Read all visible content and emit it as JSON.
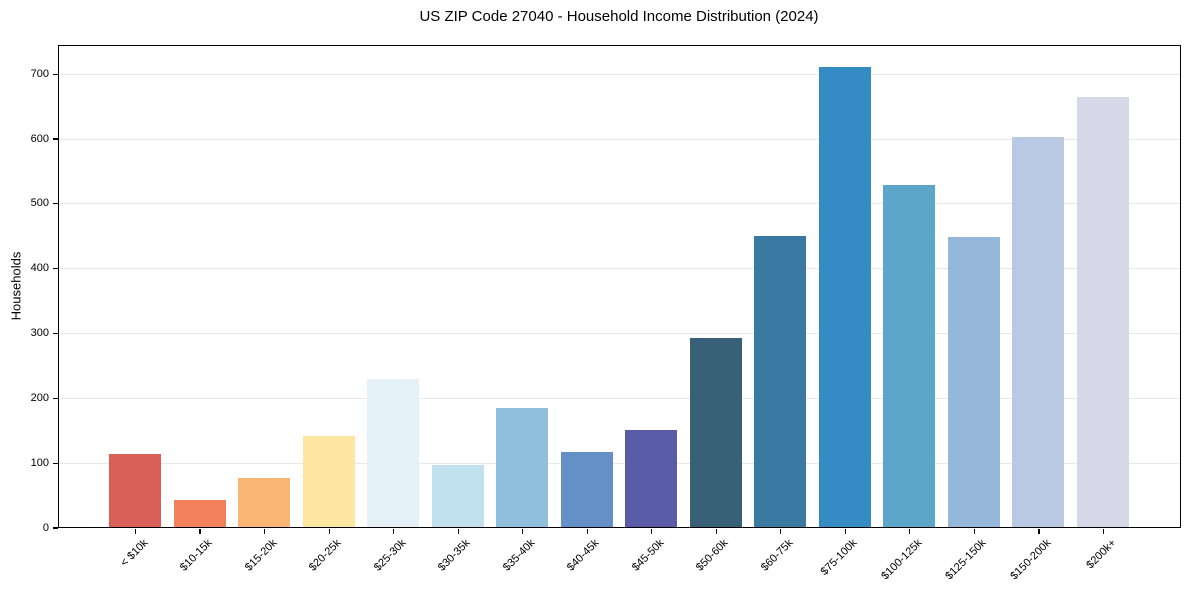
{
  "chart_data": {
    "type": "bar",
    "title": "US ZIP Code 27040 - Household Income Distribution (2024)",
    "xlabel": "",
    "ylabel": "Households",
    "categories": [
      "< $10k",
      "$10-15k",
      "$15-20k",
      "$20-25k",
      "$25-30k",
      "$30-35k",
      "$35-40k",
      "$40-45k",
      "$45-50k",
      "$50-60k",
      "$60-75k",
      "$75-100k",
      "$100-125k",
      "$125-150k",
      "$150-200k",
      "$200k+"
    ],
    "values": [
      112,
      42,
      76,
      141,
      229,
      95,
      183,
      115,
      149,
      291,
      449,
      710,
      527,
      447,
      601,
      664
    ],
    "bar_colors": [
      "#d95f57",
      "#f2825e",
      "#fab675",
      "#fde7a0",
      "#e4f1f6",
      "#c0e1ed",
      "#90bedd",
      "#6590c7",
      "#5a5ca8",
      "#386077",
      "#3a7aa2",
      "#358cc4",
      "#5ca6c9",
      "#94b7da",
      "#b9c9e3",
      "#d7d8e7"
    ],
    "yticks": [
      0,
      100,
      200,
      300,
      400,
      500,
      600,
      700
    ],
    "ylim": [
      0,
      745
    ],
    "grid": "horizontal",
    "grid_color": "#e8e8e8",
    "x_tick_rotation_deg": 45,
    "legend": "none",
    "frame": "full-box"
  }
}
